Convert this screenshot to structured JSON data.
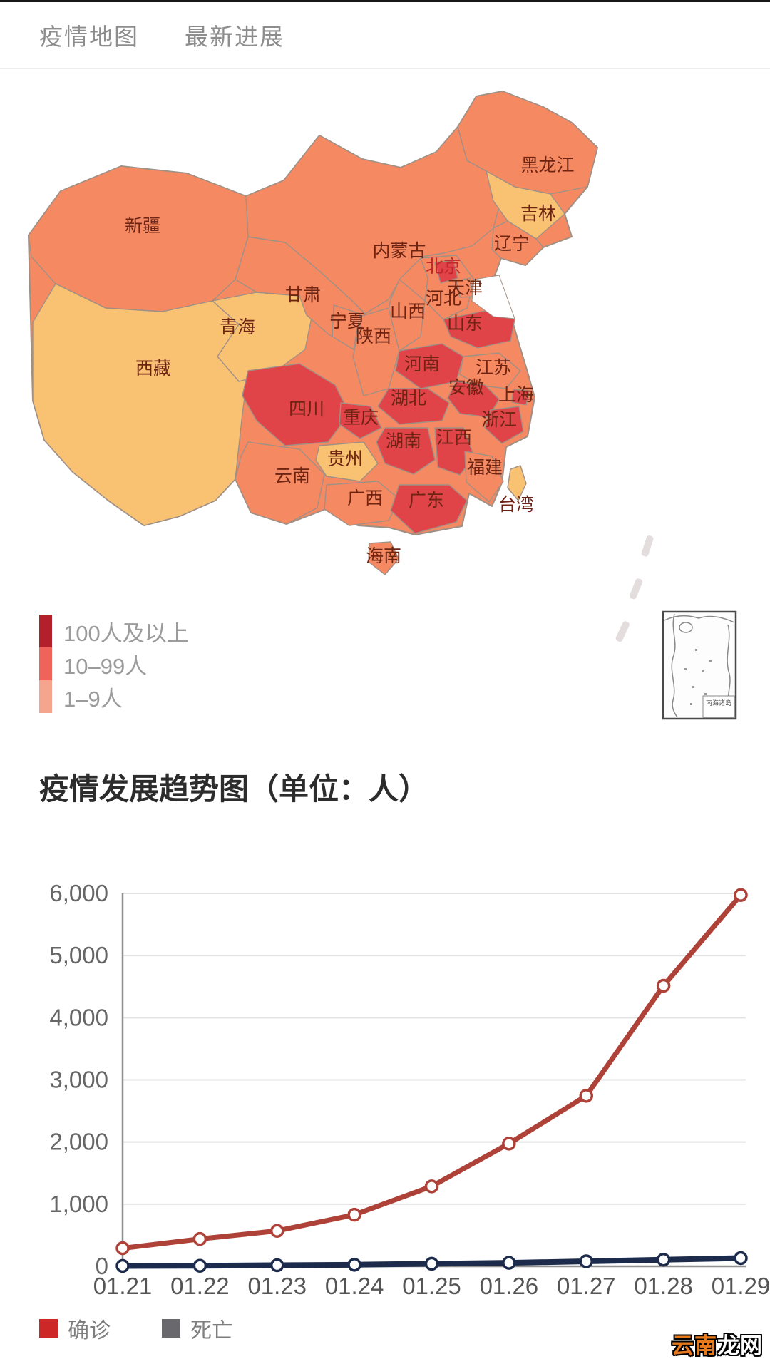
{
  "nav": {
    "items": [
      "疫情地图",
      "最新进展"
    ]
  },
  "map_legend": [
    {
      "label": "100人及以上",
      "color": "#b3202c"
    },
    {
      "label": "10–99人",
      "color": "#f0635b"
    },
    {
      "label": "1–9人",
      "color": "#f5a48d"
    }
  ],
  "inset_label": "南海诸岛",
  "section_title": "疫情发展趋势图（单位：人）",
  "series_legend": [
    {
      "label": "确诊",
      "color": "#ce2727"
    },
    {
      "label": "死亡",
      "color": "#68686d"
    }
  ],
  "watermark": {
    "part1": "云南",
    "part2": "龙网",
    "color1": "#e87a1e",
    "color2": "#ffffff"
  },
  "chart_data": [
    {
      "type": "choropleth",
      "title": "疫情地图",
      "legend_buckets": [
        "100人及以上",
        "10–99人",
        "1–9人"
      ],
      "bucket_colors": {
        "high": "#e04348",
        "mid": "#f58962",
        "low": "#f9c273"
      },
      "regions": [
        {
          "id": "xinjiang",
          "name": "新疆",
          "bucket": "mid"
        },
        {
          "id": "xizang",
          "name": "西藏",
          "bucket": "low"
        },
        {
          "id": "qinghai",
          "name": "青海",
          "bucket": "low"
        },
        {
          "id": "gansu",
          "name": "甘肃",
          "bucket": "mid"
        },
        {
          "id": "neimenggu",
          "name": "内蒙古",
          "bucket": "mid"
        },
        {
          "id": "heilongjiang",
          "name": "黑龙江",
          "bucket": "mid"
        },
        {
          "id": "jilin",
          "name": "吉林",
          "bucket": "low"
        },
        {
          "id": "liaoning",
          "name": "辽宁",
          "bucket": "mid"
        },
        {
          "id": "hebei",
          "name": "河北",
          "bucket": "mid"
        },
        {
          "id": "shanxi",
          "name": "山西",
          "bucket": "mid"
        },
        {
          "id": "shandong",
          "name": "山东",
          "bucket": "high"
        },
        {
          "id": "henan",
          "name": "河南",
          "bucket": "high"
        },
        {
          "id": "jiangsu",
          "name": "江苏",
          "bucket": "mid"
        },
        {
          "id": "anhui",
          "name": "安徽",
          "bucket": "high"
        },
        {
          "id": "shanghai",
          "name": "上海",
          "bucket": "high"
        },
        {
          "id": "zhejiang",
          "name": "浙江",
          "bucket": "high"
        },
        {
          "id": "hubei",
          "name": "湖北",
          "bucket": "high"
        },
        {
          "id": "shaanxi",
          "name": "陕西",
          "bucket": "mid"
        },
        {
          "id": "ningxia",
          "name": "宁夏",
          "bucket": "mid"
        },
        {
          "id": "sichuan",
          "name": "四川",
          "bucket": "high"
        },
        {
          "id": "chongqing",
          "name": "重庆",
          "bucket": "high"
        },
        {
          "id": "hunan",
          "name": "湖南",
          "bucket": "high"
        },
        {
          "id": "jiangxi",
          "name": "江西",
          "bucket": "high"
        },
        {
          "id": "guizhou",
          "name": "贵州",
          "bucket": "low"
        },
        {
          "id": "yunnan",
          "name": "云南",
          "bucket": "mid"
        },
        {
          "id": "guangxi",
          "name": "广西",
          "bucket": "mid"
        },
        {
          "id": "guangdong",
          "name": "广东",
          "bucket": "high"
        },
        {
          "id": "fujian",
          "name": "福建",
          "bucket": "mid"
        },
        {
          "id": "taiwan",
          "name": "台湾",
          "bucket": "low"
        },
        {
          "id": "hainan",
          "name": "海南",
          "bucket": "mid"
        },
        {
          "id": "beijing",
          "name": "北京",
          "bucket": "high",
          "label_color": "#c0262b"
        },
        {
          "id": "tianjin",
          "name": "天津",
          "bucket": "mid"
        }
      ]
    },
    {
      "type": "line",
      "title": "疫情发展趋势图（单位：人）",
      "x": [
        "01.21",
        "01.22",
        "01.23",
        "01.24",
        "01.25",
        "01.26",
        "01.27",
        "01.28",
        "01.29"
      ],
      "series": [
        {
          "name": "确诊",
          "color": "#af4238",
          "values": [
            291,
            440,
            571,
            830,
            1287,
            1975,
            2744,
            4515,
            5974
          ]
        },
        {
          "name": "死亡",
          "color": "#1c2b4b",
          "values": [
            6,
            9,
            17,
            25,
            41,
            56,
            80,
            106,
            132
          ]
        }
      ],
      "ylim": [
        0,
        6000
      ],
      "yticks": [
        0,
        1000,
        2000,
        3000,
        4000,
        5000,
        6000
      ],
      "ytick_labels": [
        "0",
        "1,000",
        "2,000",
        "3,000",
        "4,000",
        "5,000",
        "6,000"
      ],
      "grid": true,
      "legend_position": "bottom"
    }
  ]
}
